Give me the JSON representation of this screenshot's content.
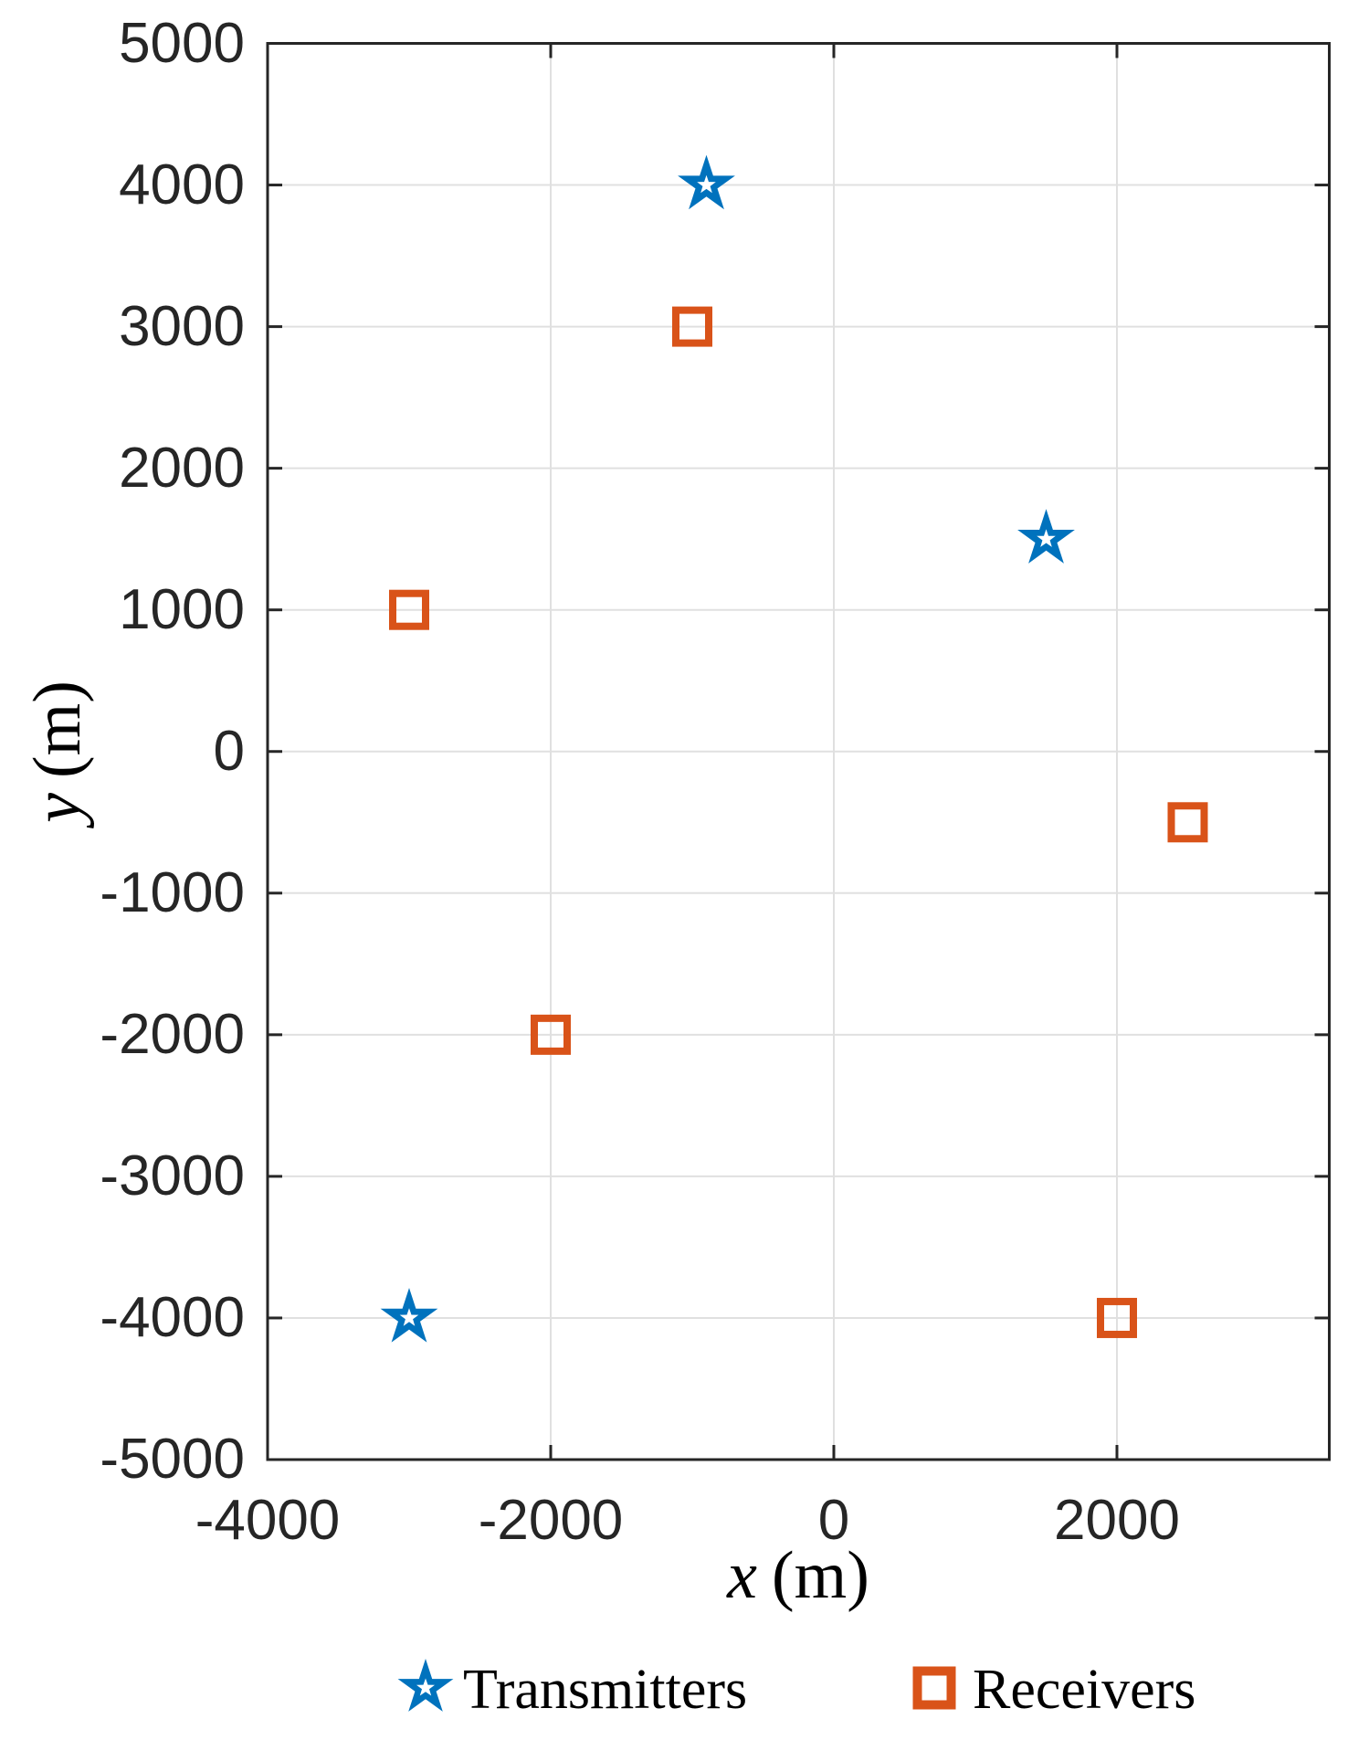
{
  "chart_data": {
    "type": "scatter",
    "title": "",
    "xlabel": {
      "var": "x",
      "unit": "(m)"
    },
    "ylabel": {
      "var": "y",
      "unit": "(m)"
    },
    "xlim": [
      -4000,
      3500
    ],
    "ylim": [
      -5000,
      5000
    ],
    "xticks": [
      -4000,
      -2000,
      0,
      2000
    ],
    "yticks": [
      5000,
      4000,
      3000,
      2000,
      1000,
      0,
      -1000,
      -2000,
      -3000,
      -4000,
      -5000
    ],
    "grid": true,
    "legend_position": "below",
    "series": [
      {
        "name": "Transmitters",
        "marker": "star",
        "color": "#0072BD",
        "points": [
          [
            -900,
            4000
          ],
          [
            1500,
            1500
          ],
          [
            -3000,
            -4000
          ]
        ]
      },
      {
        "name": "Receivers",
        "marker": "square",
        "color": "#D95319",
        "points": [
          [
            -1000,
            3000
          ],
          [
            -3000,
            1000
          ],
          [
            2500,
            -500
          ],
          [
            -2000,
            -2000
          ],
          [
            2000,
            -4000
          ]
        ]
      }
    ]
  },
  "colors": {
    "axis": "#262626",
    "grid": "#e0e0e0",
    "background": "#ffffff"
  }
}
